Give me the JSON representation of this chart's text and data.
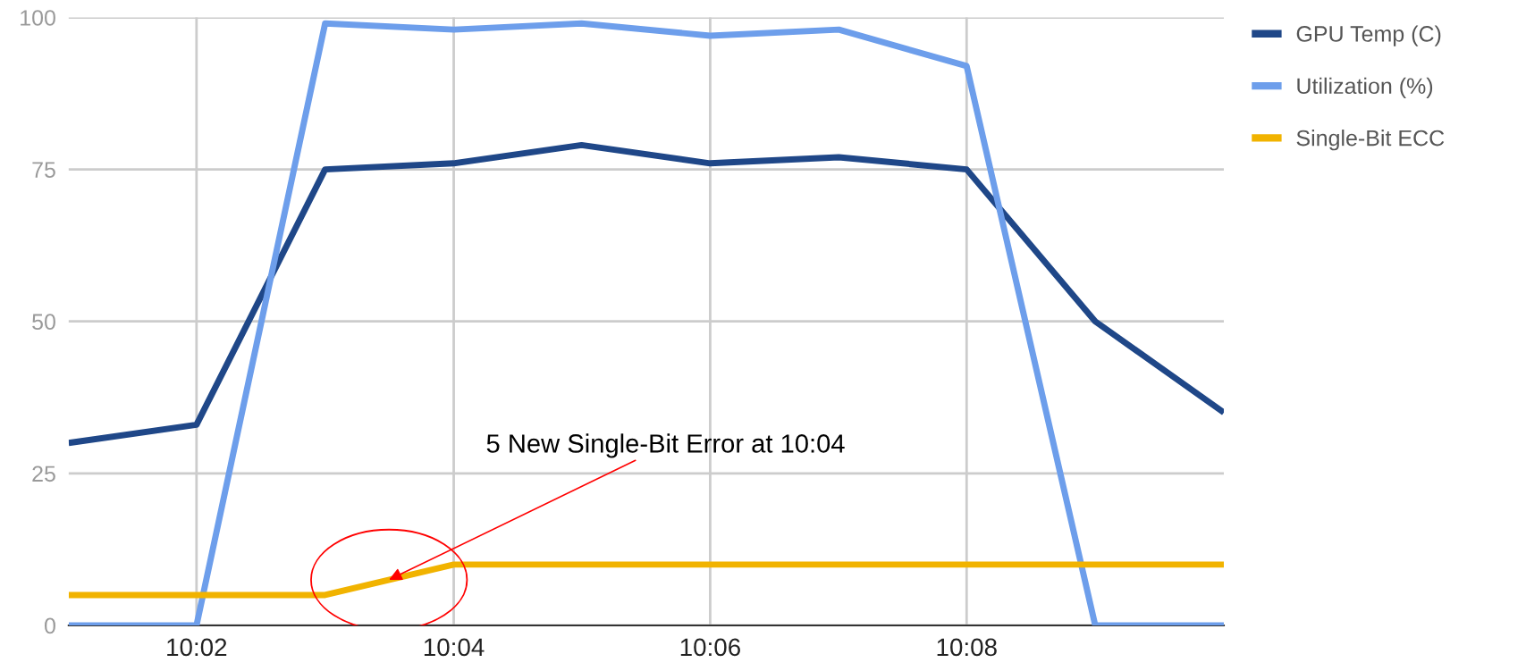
{
  "chart_data": {
    "type": "line",
    "x": [
      10.0167,
      10.0333,
      10.05,
      10.0667,
      10.0833,
      10.1,
      10.1167,
      10.1333,
      10.15,
      10.1667
    ],
    "series": [
      {
        "name": "GPU Temp (C)",
        "color": "#1f4788",
        "values": [
          30,
          33,
          75,
          76,
          79,
          76,
          77,
          75,
          50,
          35
        ]
      },
      {
        "name": "Utilization (%)",
        "color": "#6d9eeb",
        "values": [
          0,
          0,
          99,
          98,
          99,
          97,
          98,
          92,
          0,
          0
        ]
      },
      {
        "name": "Single-Bit ECC",
        "color": "#f1b300",
        "values": [
          5,
          5,
          5,
          10,
          10,
          10,
          10,
          10,
          10,
          10
        ]
      }
    ],
    "xlim": [
      10.0167,
      10.1667
    ],
    "xticks": [
      {
        "value": 10.0333,
        "label": "10:02"
      },
      {
        "value": 10.0667,
        "label": "10:04"
      },
      {
        "value": 10.1,
        "label": "10:06"
      },
      {
        "value": 10.1333,
        "label": "10:08"
      }
    ],
    "ylim": [
      0,
      100
    ],
    "yticks": [
      0,
      25,
      50,
      75,
      100
    ],
    "grid": true,
    "legend": "top right",
    "marker": "none",
    "line_style": "solid",
    "annotations": [
      {
        "text": "5 New Single-Bit Error at 10:04",
        "x": 10.0583,
        "y": 7.5
      }
    ]
  }
}
